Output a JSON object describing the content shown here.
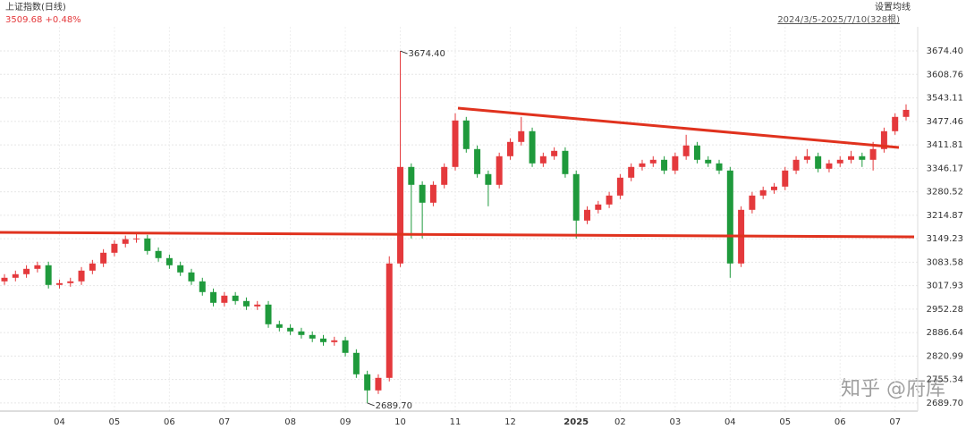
{
  "chart_data": {
    "type": "candlestick",
    "title": "上证指数(日线)",
    "subtitle": "3509.68 +0.48%",
    "settings_label": "设置均线",
    "range_label": "2024/3/5-2025/7/10(328根)",
    "watermark": "知乎 @府库",
    "up_color": "#e4393c",
    "down_color": "#1f9a3c",
    "grid": true,
    "ylim": [
      2667,
      3742
    ],
    "yticks": [
      {
        "value": 3674.4,
        "label": "3674.40"
      },
      3608.76,
      3543.11,
      3477.46,
      3411.81,
      3346.17,
      3280.52,
      3214.87,
      3149.23,
      3083.58,
      3017.93,
      2952.28,
      2886.64,
      2820.99,
      2755.34,
      {
        "value": 2689.7,
        "label": "2689.70"
      }
    ],
    "categories": [
      null,
      null,
      null,
      null,
      null,
      "04",
      null,
      null,
      null,
      null,
      "05",
      null,
      null,
      null,
      null,
      "06",
      null,
      null,
      null,
      null,
      "07",
      null,
      null,
      null,
      null,
      null,
      "08",
      null,
      null,
      null,
      null,
      "09",
      null,
      null,
      null,
      null,
      "10",
      null,
      null,
      null,
      null,
      "11",
      null,
      null,
      null,
      null,
      "12",
      null,
      null,
      null,
      null,
      null,
      "2025",
      null,
      null,
      null,
      "02",
      null,
      null,
      null,
      null,
      "03",
      null,
      null,
      null,
      null,
      "04",
      null,
      null,
      null,
      null,
      "05",
      null,
      null,
      null,
      null,
      "06",
      null,
      null,
      null,
      null,
      "07",
      null
    ],
    "open": [
      3030,
      3040,
      3050,
      3065,
      3075,
      3020,
      3025,
      3030,
      3060,
      3080,
      3110,
      3135,
      3148,
      3150,
      3115,
      3095,
      3075,
      3055,
      3030,
      3000,
      2970,
      2990,
      2975,
      2960,
      2965,
      2910,
      2900,
      2890,
      2880,
      2870,
      2860,
      2865,
      2830,
      2770,
      2725,
      2760,
      3080,
      3350,
      3300,
      3250,
      3300,
      3350,
      3480,
      3400,
      3330,
      3300,
      3380,
      3420,
      3450,
      3360,
      3380,
      3395,
      3330,
      3200,
      3230,
      3245,
      3270,
      3320,
      3350,
      3360,
      3370,
      3340,
      3380,
      3410,
      3370,
      3360,
      3340,
      3080,
      3230,
      3270,
      3285,
      3295,
      3340,
      3370,
      3380,
      3345,
      3360,
      3370,
      3380,
      3370,
      3400,
      3450,
      3490
    ],
    "high": [
      3050,
      3060,
      3075,
      3085,
      3085,
      3035,
      3040,
      3070,
      3090,
      3120,
      3145,
      3158,
      3165,
      3160,
      3125,
      3105,
      3085,
      3065,
      3040,
      3010,
      3000,
      3000,
      2985,
      2975,
      2975,
      2920,
      2910,
      2900,
      2890,
      2880,
      2875,
      2875,
      2840,
      2780,
      2770,
      3100,
      3674.4,
      3360,
      3310,
      3310,
      3360,
      3500,
      3490,
      3410,
      3340,
      3390,
      3430,
      3490,
      3460,
      3390,
      3405,
      3405,
      3340,
      3240,
      3255,
      3280,
      3330,
      3360,
      3370,
      3380,
      3380,
      3390,
      3440,
      3420,
      3380,
      3370,
      3350,
      3240,
      3280,
      3295,
      3305,
      3350,
      3380,
      3400,
      3390,
      3370,
      3380,
      3395,
      3390,
      3420,
      3460,
      3500,
      3525
    ],
    "low": [
      3020,
      3030,
      3040,
      3055,
      3010,
      3010,
      3015,
      3020,
      3050,
      3070,
      3100,
      3125,
      3138,
      3105,
      3085,
      3065,
      3045,
      3020,
      2990,
      2960,
      2960,
      2965,
      2950,
      2950,
      2900,
      2890,
      2880,
      2870,
      2860,
      2850,
      2850,
      2820,
      2760,
      2689.7,
      2715,
      2750,
      3070,
      3150,
      3150,
      3240,
      3290,
      3340,
      3390,
      3320,
      3240,
      3290,
      3370,
      3410,
      3350,
      3350,
      3370,
      3320,
      3150,
      3190,
      3220,
      3235,
      3260,
      3310,
      3340,
      3350,
      3330,
      3330,
      3370,
      3360,
      3350,
      3330,
      3040,
      3070,
      3220,
      3260,
      3275,
      3285,
      3330,
      3360,
      3335,
      3335,
      3350,
      3360,
      3350,
      3340,
      3390,
      3440,
      3480
    ],
    "close": [
      3040,
      3050,
      3065,
      3075,
      3020,
      3025,
      3030,
      3060,
      3080,
      3110,
      3135,
      3148,
      3150,
      3115,
      3095,
      3075,
      3055,
      3030,
      3000,
      2970,
      2990,
      2975,
      2960,
      2965,
      2910,
      2900,
      2890,
      2880,
      2870,
      2860,
      2865,
      2830,
      2770,
      2725,
      2760,
      3080,
      3350,
      3300,
      3250,
      3300,
      3350,
      3480,
      3400,
      3330,
      3300,
      3380,
      3420,
      3450,
      3360,
      3380,
      3395,
      3330,
      3200,
      3230,
      3245,
      3270,
      3320,
      3350,
      3360,
      3370,
      3340,
      3380,
      3410,
      3370,
      3360,
      3340,
      3080,
      3230,
      3270,
      3285,
      3295,
      3340,
      3370,
      3380,
      3345,
      3360,
      3370,
      3380,
      3370,
      3400,
      3450,
      3490,
      3509.68
    ],
    "annotations": [
      {
        "label": "3674.40",
        "value": 3674.4
      },
      {
        "label": "2689.70",
        "value": 2689.7
      }
    ]
  }
}
